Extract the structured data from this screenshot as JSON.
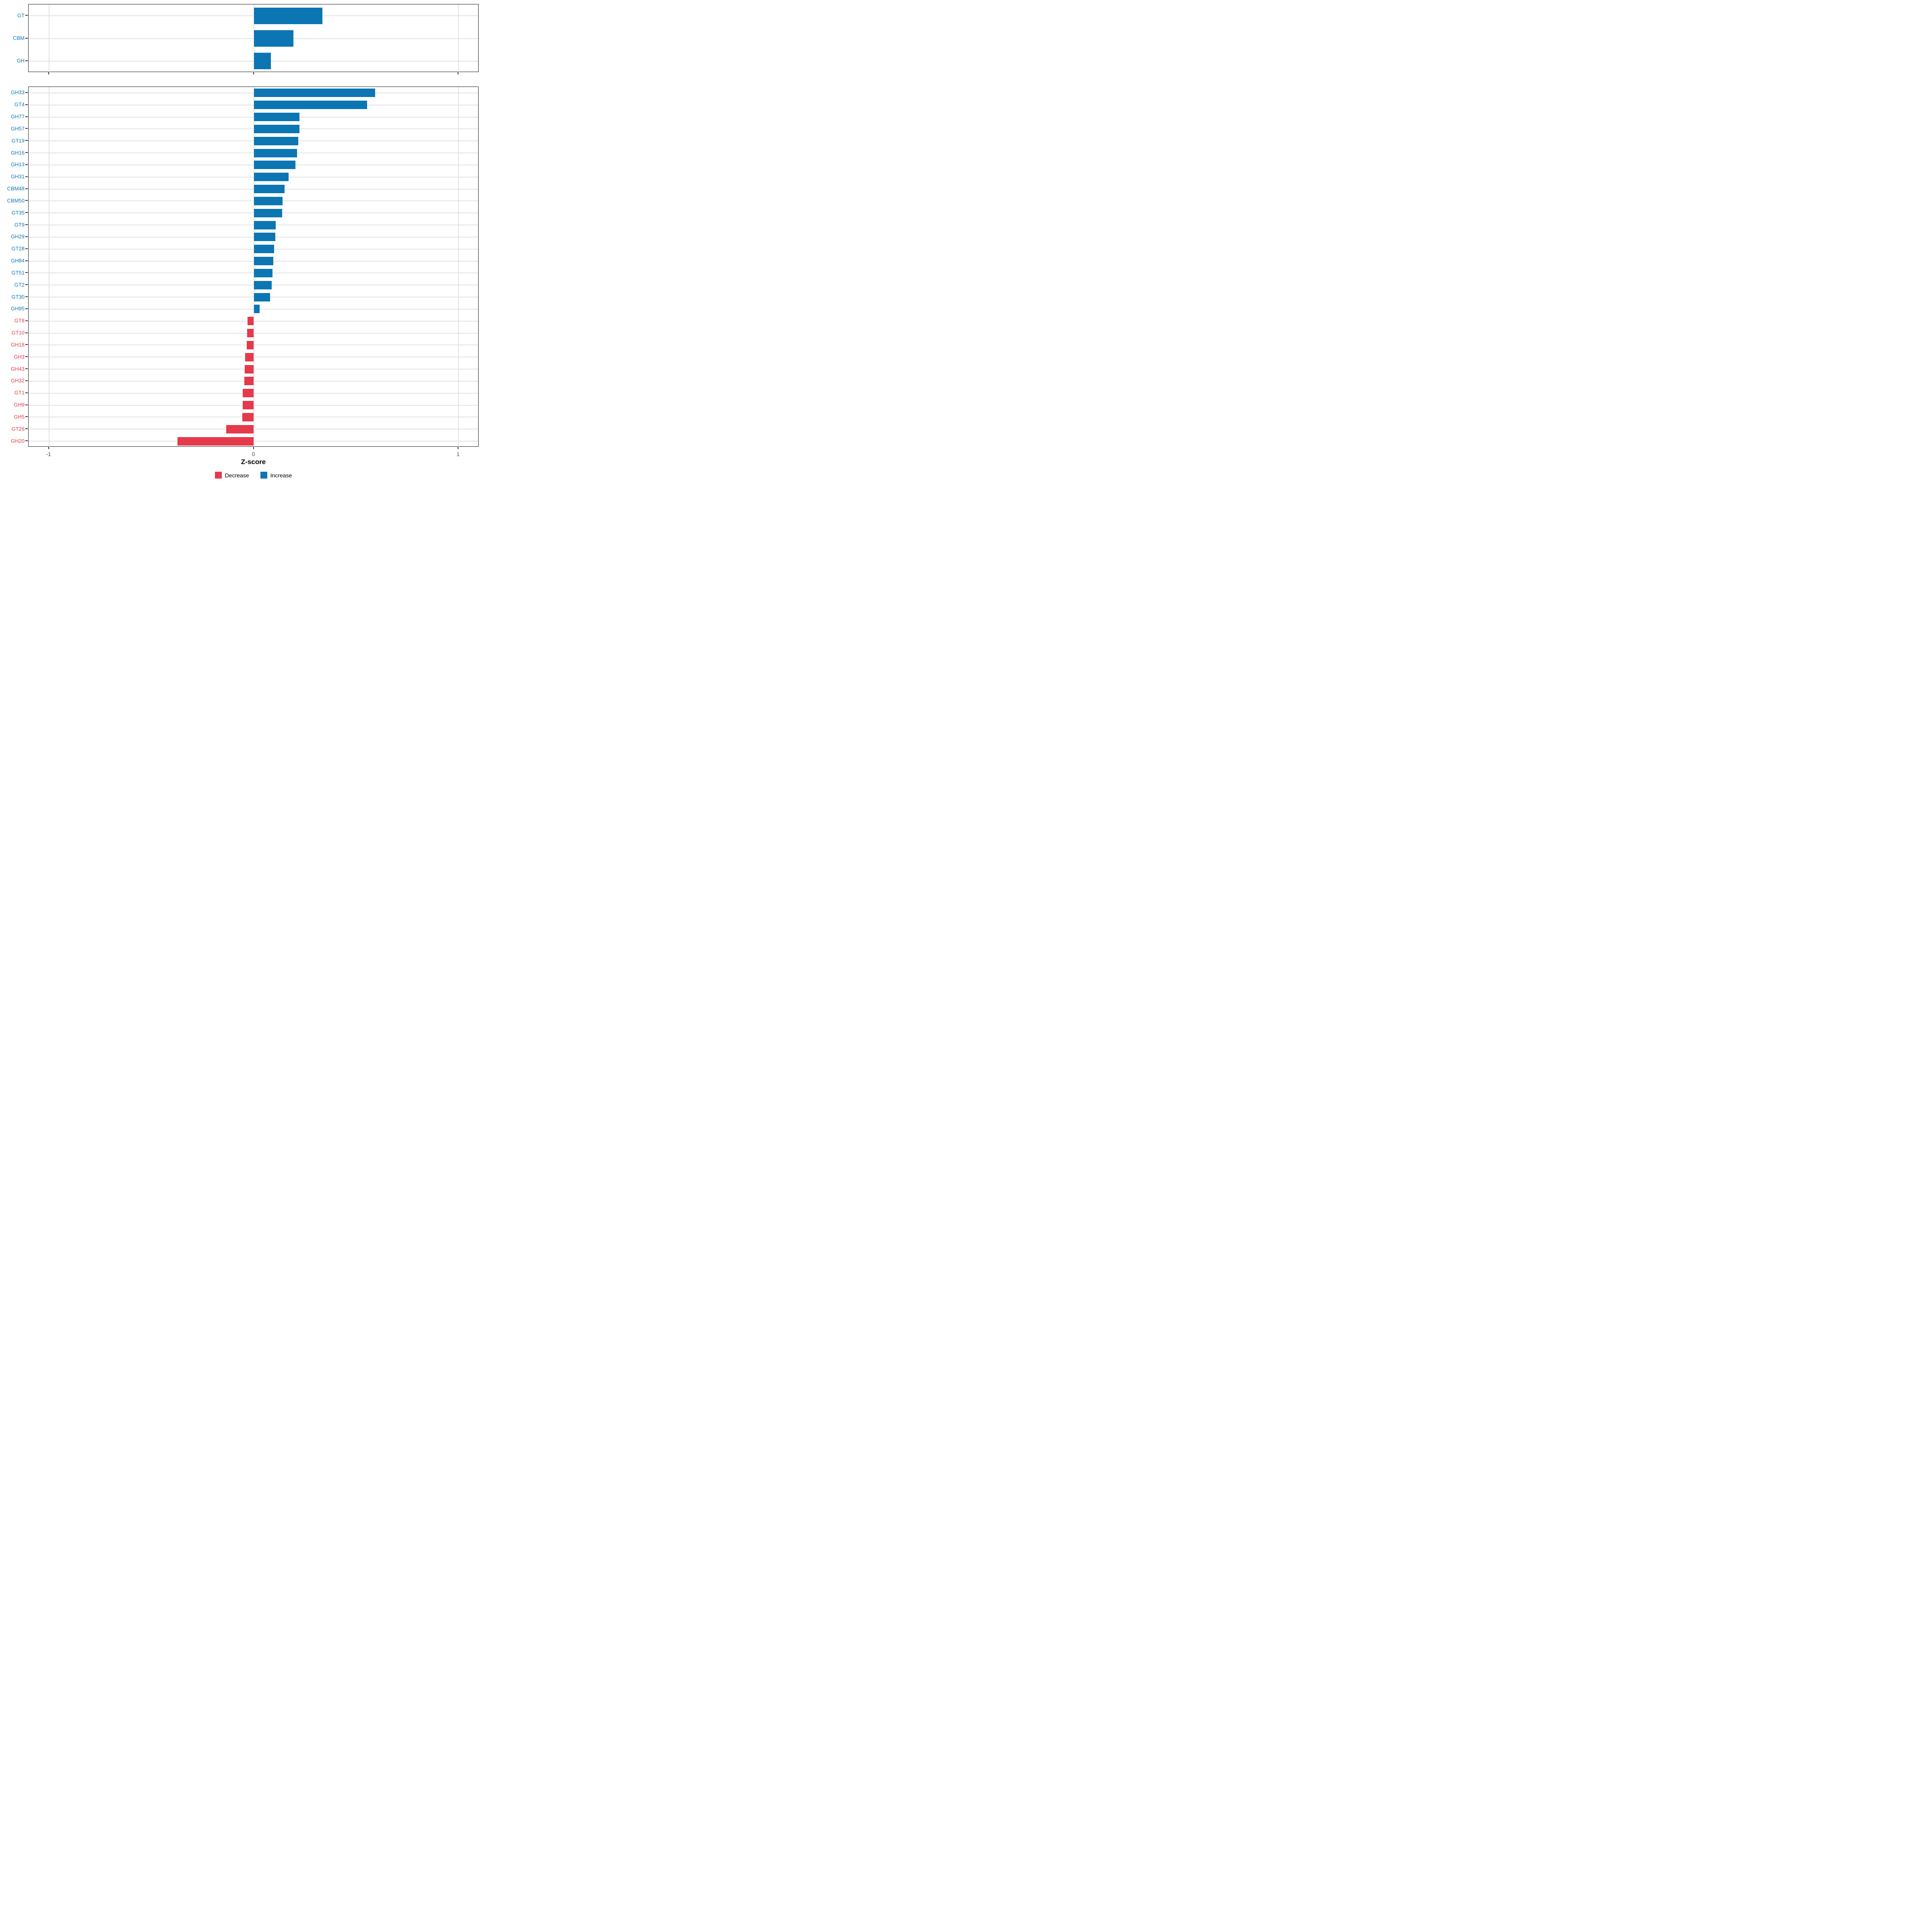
{
  "colors": {
    "increase": "#0b76b3",
    "decrease": "#e43a4c",
    "grid": "#e3e3e3",
    "axis_text": "#4d4d4d",
    "axis_dark": "#333333",
    "border": "#1a1a1a"
  },
  "chart_data": {
    "type": "bar",
    "orientation": "horizontal",
    "title": "",
    "xlabel": "Z-score",
    "ylabel": "",
    "xlim": [
      -1.1,
      1.1
    ],
    "x_ticks": [
      -1,
      0,
      1
    ],
    "grid": true,
    "legend_position": "bottom",
    "legend": [
      {
        "label": "Decrease",
        "direction": "decrease"
      },
      {
        "label": "Increase",
        "direction": "increase"
      }
    ],
    "panels": [
      {
        "name": "enzyme-class-summary",
        "categories": [
          "GT",
          "CBM",
          "GH"
        ],
        "values": [
          0.335,
          0.193,
          0.083
        ]
      },
      {
        "name": "enzyme-families",
        "categories": [
          "GH33",
          "GT4",
          "GH77",
          "GH57",
          "GT19",
          "GH16",
          "GH13",
          "GH31",
          "CBM48",
          "CBM50",
          "GT35",
          "GT9",
          "GH29",
          "GT28",
          "GH84",
          "GT51",
          "GT2",
          "GT30",
          "GH95",
          "GT8",
          "GT10",
          "GH18",
          "GH3",
          "GH43",
          "GH32",
          "GT1",
          "GH9",
          "GH5",
          "GT26",
          "GH20"
        ],
        "values": [
          0.592,
          0.553,
          0.224,
          0.223,
          0.218,
          0.211,
          0.203,
          0.17,
          0.151,
          0.14,
          0.139,
          0.108,
          0.106,
          0.1,
          0.096,
          0.091,
          0.088,
          0.079,
          0.029,
          -0.031,
          -0.032,
          -0.034,
          -0.043,
          -0.045,
          -0.046,
          -0.054,
          -0.055,
          -0.056,
          -0.135,
          -0.373
        ]
      }
    ]
  }
}
